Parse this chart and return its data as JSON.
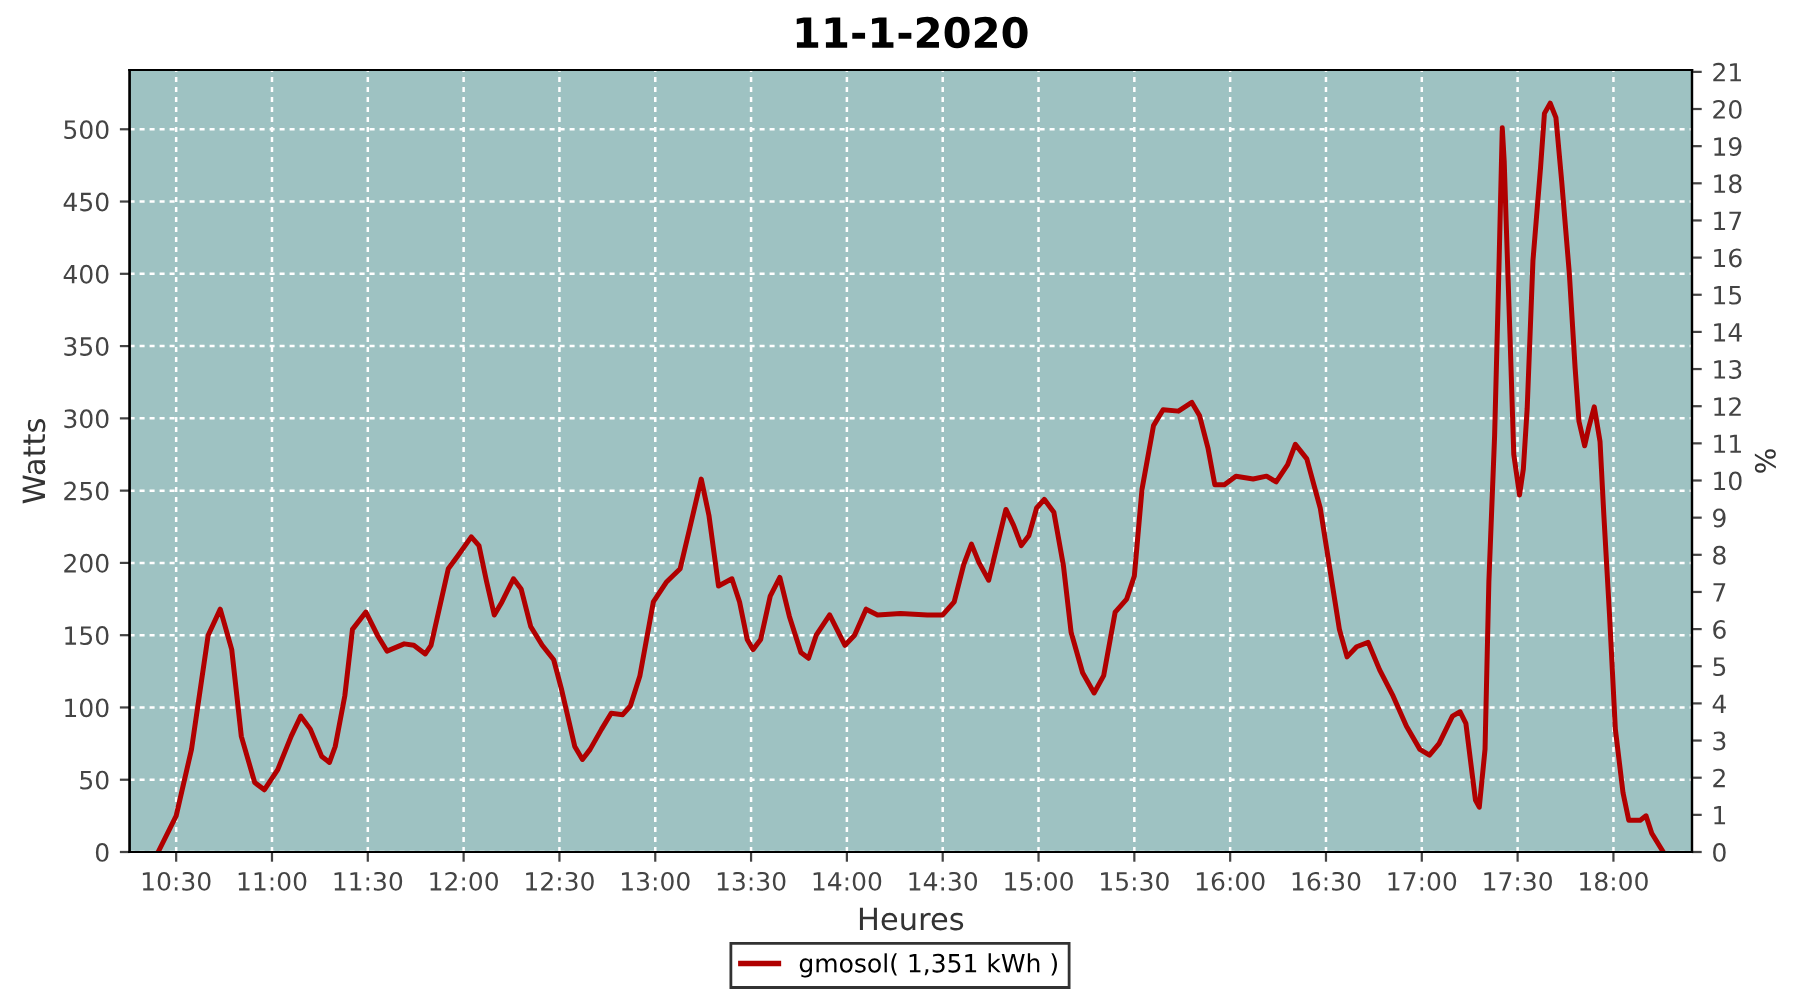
{
  "chart_data": {
    "type": "line",
    "title": "11-1-2020",
    "xlabel": "Heures",
    "ylabel": "Watts",
    "y2label": "%",
    "xlim": [
      10.257,
      18.41
    ],
    "xticks": [
      {
        "value": 10.5,
        "label": "10:30"
      },
      {
        "value": 11,
        "label": "11:00"
      },
      {
        "value": 11.5,
        "label": "11:30"
      },
      {
        "value": 12,
        "label": "12:00"
      },
      {
        "value": 12.5,
        "label": "12:30"
      },
      {
        "value": 13,
        "label": "13:00"
      },
      {
        "value": 13.5,
        "label": "13:30"
      },
      {
        "value": 14,
        "label": "14:00"
      },
      {
        "value": 14.5,
        "label": "14:30"
      },
      {
        "value": 15,
        "label": "15:00"
      },
      {
        "value": 15.5,
        "label": "15:30"
      },
      {
        "value": 16,
        "label": "16:00"
      },
      {
        "value": 16.5,
        "label": "16:30"
      },
      {
        "value": 17,
        "label": "17:00"
      },
      {
        "value": 17.5,
        "label": "17:30"
      },
      {
        "value": 18,
        "label": "18:00"
      }
    ],
    "ylim": [
      0,
      541
    ],
    "yticks": [
      0,
      50,
      100,
      150,
      200,
      250,
      300,
      350,
      400,
      450,
      500
    ],
    "y2lim": [
      0,
      21.05
    ],
    "y2ticks": [
      0,
      1,
      2,
      3,
      4,
      5,
      6,
      7,
      8,
      9,
      10,
      11,
      12,
      13,
      14,
      15,
      16,
      17,
      18,
      19,
      20,
      21
    ],
    "grid": true,
    "legend": "bottom",
    "marker": "none",
    "line_style": "solid",
    "series": [
      {
        "name": "gmosol( 1,351 kWh )",
        "color": "#b00000",
        "x": [
          10.406,
          10.5,
          10.58,
          10.667,
          10.73,
          10.79,
          10.84,
          10.91,
          10.96,
          11.03,
          11.1,
          11.15,
          11.2,
          11.26,
          11.3,
          11.33,
          11.38,
          11.42,
          11.49,
          11.55,
          11.6,
          11.69,
          11.74,
          11.8,
          11.83,
          11.92,
          11.97,
          12.04,
          12.08,
          12.12,
          12.16,
          12.2,
          12.26,
          12.3,
          12.35,
          12.41,
          12.47,
          12.51,
          12.58,
          12.62,
          12.66,
          12.72,
          12.77,
          12.83,
          12.87,
          12.92,
          12.99,
          13.06,
          13.13,
          13.18,
          13.24,
          13.28,
          13.33,
          13.4,
          13.44,
          13.48,
          13.51,
          13.55,
          13.6,
          13.65,
          13.7,
          13.76,
          13.8,
          13.84,
          13.91,
          13.99,
          14.04,
          14.1,
          14.16,
          14.28,
          14.42,
          14.5,
          14.56,
          14.61,
          14.65,
          14.69,
          14.74,
          14.78,
          14.83,
          14.87,
          14.91,
          14.95,
          14.99,
          15.03,
          15.08,
          15.13,
          15.17,
          15.23,
          15.29,
          15.34,
          15.4,
          15.46,
          15.5,
          15.54,
          15.6,
          15.65,
          15.73,
          15.8,
          15.84,
          15.885,
          15.92,
          15.97,
          16.03,
          16.12,
          16.19,
          16.24,
          16.3,
          16.34,
          16.4,
          16.47,
          16.52,
          16.57,
          16.61,
          16.66,
          16.72,
          16.78,
          16.85,
          16.92,
          16.99,
          17.04,
          17.09,
          17.16,
          17.2,
          17.23,
          17.26,
          17.28,
          17.3,
          17.33,
          17.35,
          17.38,
          17.4,
          17.42,
          17.43,
          17.44,
          17.46,
          17.48,
          17.51,
          17.53,
          17.55,
          17.58,
          17.62,
          17.64,
          17.67,
          17.7,
          17.73,
          17.77,
          17.8,
          17.82,
          17.85,
          17.87,
          17.9,
          17.93,
          17.95,
          17.98,
          18.01,
          18.05,
          18.08,
          18.14,
          18.17,
          18.2,
          18.26
        ],
        "values": [
          0,
          25,
          71,
          150,
          168,
          140,
          80,
          48,
          43,
          57,
          80,
          94,
          85,
          66,
          62,
          73,
          108,
          154,
          166,
          150,
          139,
          144,
          143,
          137,
          143,
          196,
          205,
          218,
          212,
          187,
          164,
          173,
          189,
          182,
          156,
          143,
          133,
          113,
          73,
          64,
          71,
          85,
          96,
          95,
          101,
          122,
          173,
          187,
          196,
          224,
          258,
          233,
          184,
          189,
          173,
          147,
          140,
          147,
          177,
          190,
          163,
          138,
          134,
          150,
          164,
          143,
          150,
          168,
          164,
          165,
          164,
          164,
          173,
          199,
          213,
          200,
          188,
          210,
          237,
          226,
          212,
          219,
          238,
          244,
          235,
          198,
          152,
          124,
          110,
          122,
          166,
          175,
          191,
          251,
          295,
          306,
          305,
          311,
          302,
          279,
          254,
          254,
          260,
          258,
          260,
          256,
          268,
          282,
          272,
          238,
          196,
          154,
          135,
          142,
          145,
          126,
          108,
          87,
          71,
          67,
          75,
          94,
          97,
          89,
          57,
          36,
          31,
          71,
          187,
          288,
          390,
          501,
          478,
          437,
          358,
          275,
          247,
          265,
          307,
          409,
          474,
          511,
          518,
          508,
          464,
          400,
          335,
          298,
          281,
          293,
          308,
          284,
          233,
          163,
          85,
          41,
          22,
          22,
          25,
          13,
          0
        ]
      }
    ]
  }
}
